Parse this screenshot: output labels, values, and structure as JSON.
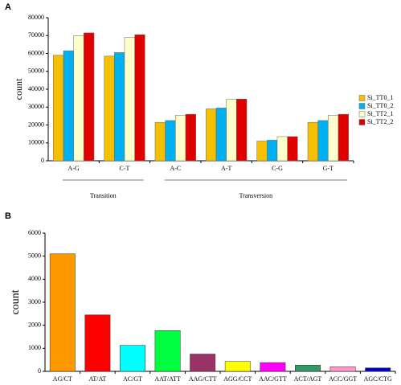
{
  "chart_data": [
    {
      "type": "bar",
      "panel_label": "A",
      "y_label": "count",
      "categories": [
        "A-G",
        "C-T",
        "A-C",
        "A-T",
        "C-G",
        "G-T"
      ],
      "series": [
        {
          "name": "Si_TT0_1",
          "color": "#f5c000",
          "values": [
            59000,
            58500,
            21500,
            29000,
            11000,
            21500
          ]
        },
        {
          "name": "Si_TT0_2",
          "color": "#00b0f0",
          "values": [
            61500,
            60500,
            22500,
            29500,
            11500,
            22500
          ]
        },
        {
          "name": "Si_TT2_1",
          "color": "#ffffcc",
          "values": [
            70000,
            69000,
            25500,
            34500,
            13500,
            25500
          ]
        },
        {
          "name": "Si_TT2_2",
          "color": "#e00000",
          "values": [
            71500,
            70500,
            26000,
            34500,
            13500,
            26000
          ]
        }
      ],
      "group_labels": [
        "Transition",
        "Transversion"
      ],
      "ylim": [
        0,
        80000
      ],
      "yticks": [
        0,
        10000,
        20000,
        30000,
        40000,
        50000,
        60000,
        70000,
        80000
      ],
      "legend": "right"
    },
    {
      "type": "bar",
      "panel_label": "B",
      "y_label": "count",
      "categories": [
        "AG/CT",
        "AT/AT",
        "AC/GT",
        "AAT/ATT",
        "AAG/CTT",
        "AGG/CCT",
        "AAC/GTT",
        "ACT/AGT",
        "ACC/GGT",
        "AGC/CTG"
      ],
      "values": [
        5100,
        2450,
        1130,
        1770,
        750,
        430,
        380,
        270,
        200,
        150
      ],
      "colors": [
        "#ff9900",
        "#ff0000",
        "#00ffff",
        "#00ff40",
        "#993366",
        "#ffff00",
        "#ff00ff",
        "#339966",
        "#ff99cc",
        "#0000cc"
      ],
      "ylim": [
        0,
        6000
      ],
      "yticks": [
        0,
        1000,
        2000,
        3000,
        4000,
        5000,
        6000
      ]
    }
  ]
}
